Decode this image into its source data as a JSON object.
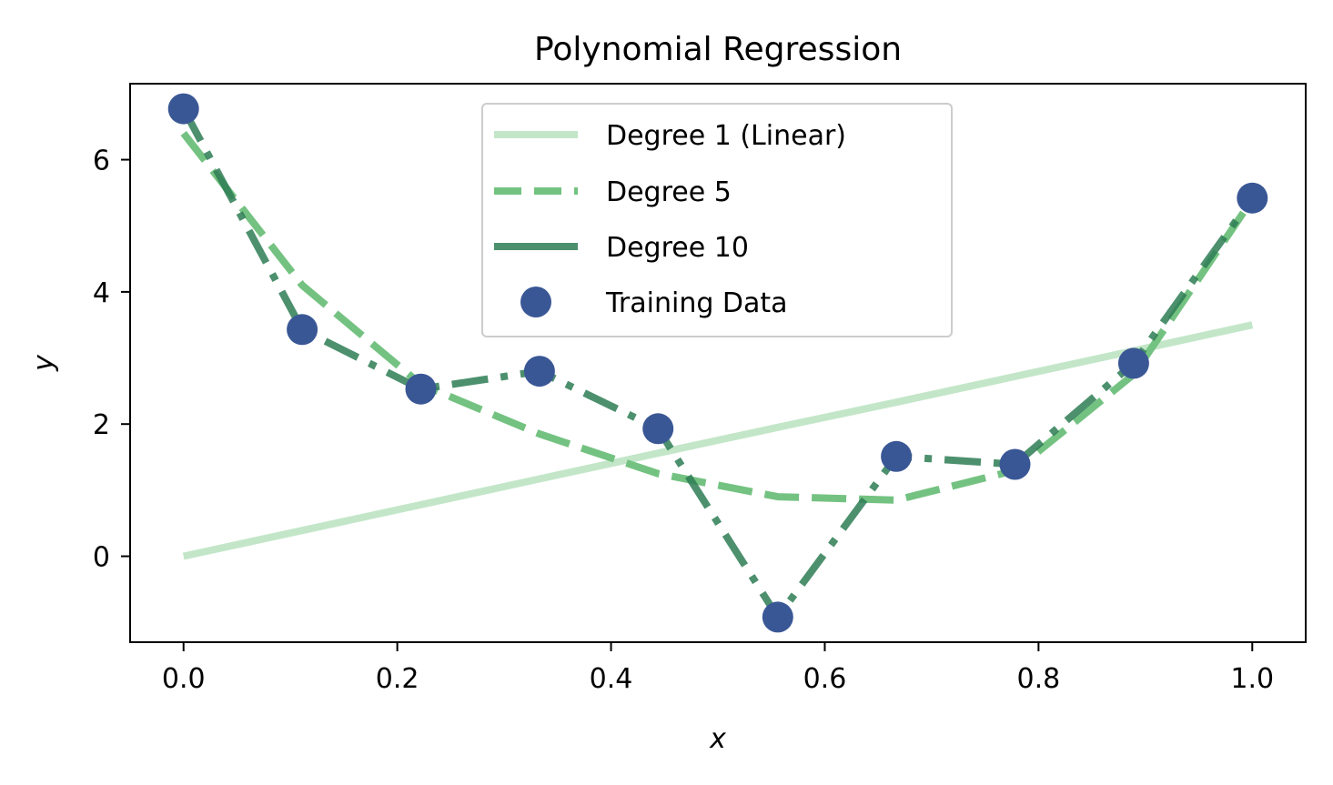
{
  "chart_data": {
    "type": "line",
    "title": "Polynomial Regression",
    "xlabel": "x",
    "ylabel": "y",
    "xlim": [
      -0.05,
      1.05
    ],
    "ylim": [
      -1.3,
      7.15
    ],
    "xticks": [
      0.0,
      0.2,
      0.4,
      0.6,
      0.8,
      1.0
    ],
    "xtick_labels": [
      "0.0",
      "0.2",
      "0.4",
      "0.6",
      "0.8",
      "1.0"
    ],
    "yticks": [
      0,
      2,
      4,
      6
    ],
    "ytick_labels": [
      "0",
      "2",
      "4",
      "6"
    ],
    "grid": false,
    "legend_position": "upper center",
    "x": [
      0.0,
      0.111,
      0.222,
      0.333,
      0.444,
      0.556,
      0.667,
      0.778,
      0.889,
      1.0
    ],
    "series": [
      {
        "name": "Degree 1 (Linear)",
        "kind": "line",
        "style": "solid",
        "color": "#c3e6c8",
        "values": [
          0.0,
          0.39,
          0.78,
          1.17,
          1.56,
          1.95,
          2.33,
          2.72,
          3.11,
          3.5
        ]
      },
      {
        "name": "Degree 5",
        "kind": "line",
        "style": "dashed",
        "color": "#74c281",
        "values": [
          6.4,
          4.1,
          2.6,
          1.85,
          1.25,
          0.9,
          0.85,
          1.3,
          2.75,
          5.4
        ]
      },
      {
        "name": "Degree 10",
        "kind": "line",
        "style": "dashdot",
        "color": "#2e7d55",
        "values": [
          6.77,
          3.43,
          2.53,
          2.8,
          1.93,
          -0.92,
          1.51,
          1.39,
          2.92,
          5.42
        ]
      },
      {
        "name": "Training Data",
        "kind": "scatter",
        "color": "#3a5795",
        "values": [
          6.77,
          3.43,
          2.53,
          2.8,
          1.93,
          -0.92,
          1.51,
          1.39,
          2.92,
          5.42
        ]
      }
    ]
  }
}
